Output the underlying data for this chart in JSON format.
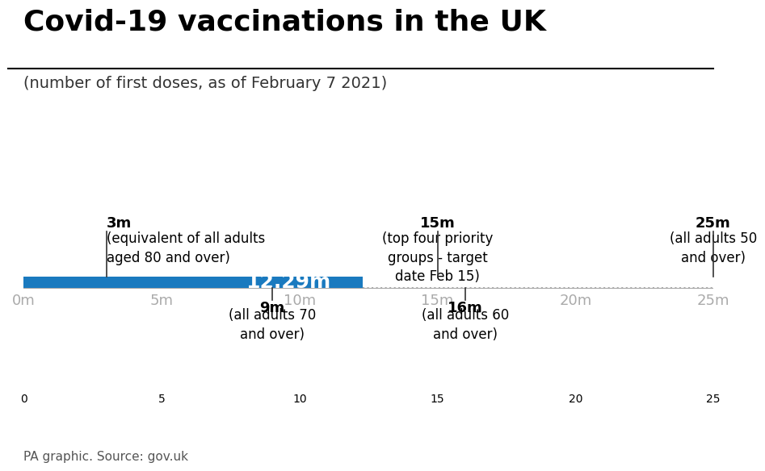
{
  "title": "Covid-19 vaccinations in the UK",
  "subtitle": "(number of first doses, as of February 7 2021)",
  "bar_value": 12.29,
  "bar_color": "#1a7abf",
  "bar_label": "12.29m",
  "bar_label_color": "#ffffff",
  "x_min": 0,
  "x_max": 25,
  "x_ticks": [
    0,
    5,
    10,
    15,
    20,
    25
  ],
  "x_tick_labels": [
    "0m",
    "5m",
    "10m",
    "15m",
    "20m",
    "25m"
  ],
  "markers_above": [
    {
      "value": 3,
      "label": "3m",
      "desc": "(equivalent of all adults\naged 80 and over)"
    },
    {
      "value": 15,
      "label": "15m",
      "desc": "(top four priority\ngroups - target\ndate Feb 15)"
    },
    {
      "value": 25,
      "label": "25m",
      "desc": "(all adults 50\nand over)"
    }
  ],
  "markers_below": [
    {
      "value": 9,
      "label": "9m",
      "desc": "(all adults 70\nand over)"
    },
    {
      "value": 16,
      "label": "16m",
      "desc": "(all adults 60\nand over)"
    }
  ],
  "footer": "PA graphic. Source: gov.uk",
  "background_color": "#ffffff",
  "axis_label_color": "#aaaaaa",
  "marker_line_color": "#333333",
  "dashed_color": "#aaaaaa",
  "title_fontsize": 26,
  "subtitle_fontsize": 14,
  "label_fontsize": 13,
  "bar_label_fontsize": 18,
  "marker_label_fontsize": 13,
  "footer_fontsize": 11
}
